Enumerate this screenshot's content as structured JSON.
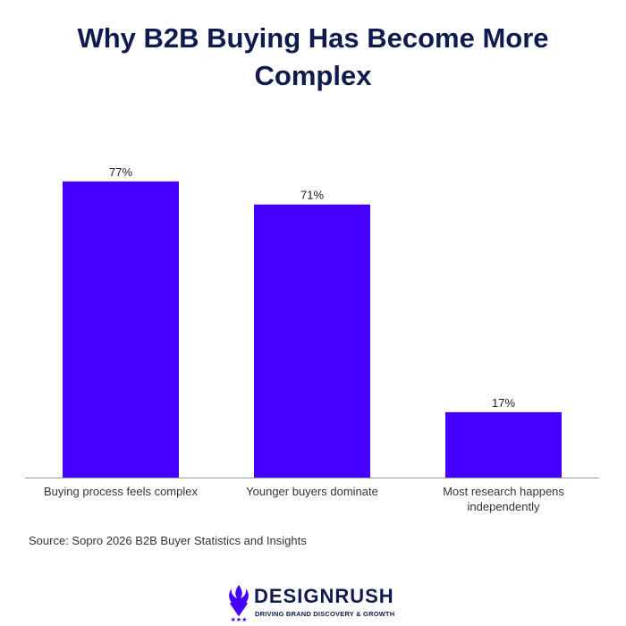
{
  "chart_data": {
    "type": "bar",
    "title_lines": [
      "Why B2B Buying Has Become More",
      "Complex"
    ],
    "categories": [
      [
        "Buying process feels complex"
      ],
      [
        "Younger buyers dominate"
      ],
      [
        "Most research happens",
        "independently"
      ]
    ],
    "values": [
      77,
      71,
      17
    ],
    "value_labels": [
      "77%",
      "71%",
      "17%"
    ],
    "ylim": [
      0,
      80
    ],
    "bar_color": "#4400ff",
    "grid": false
  },
  "source": "Source: Sopro 2026 B2B Buyer Statistics and Insights",
  "brand": {
    "name": "DESIGNRUSH",
    "tagline": "DRIVING BRAND DISCOVERY & GROWTH"
  }
}
